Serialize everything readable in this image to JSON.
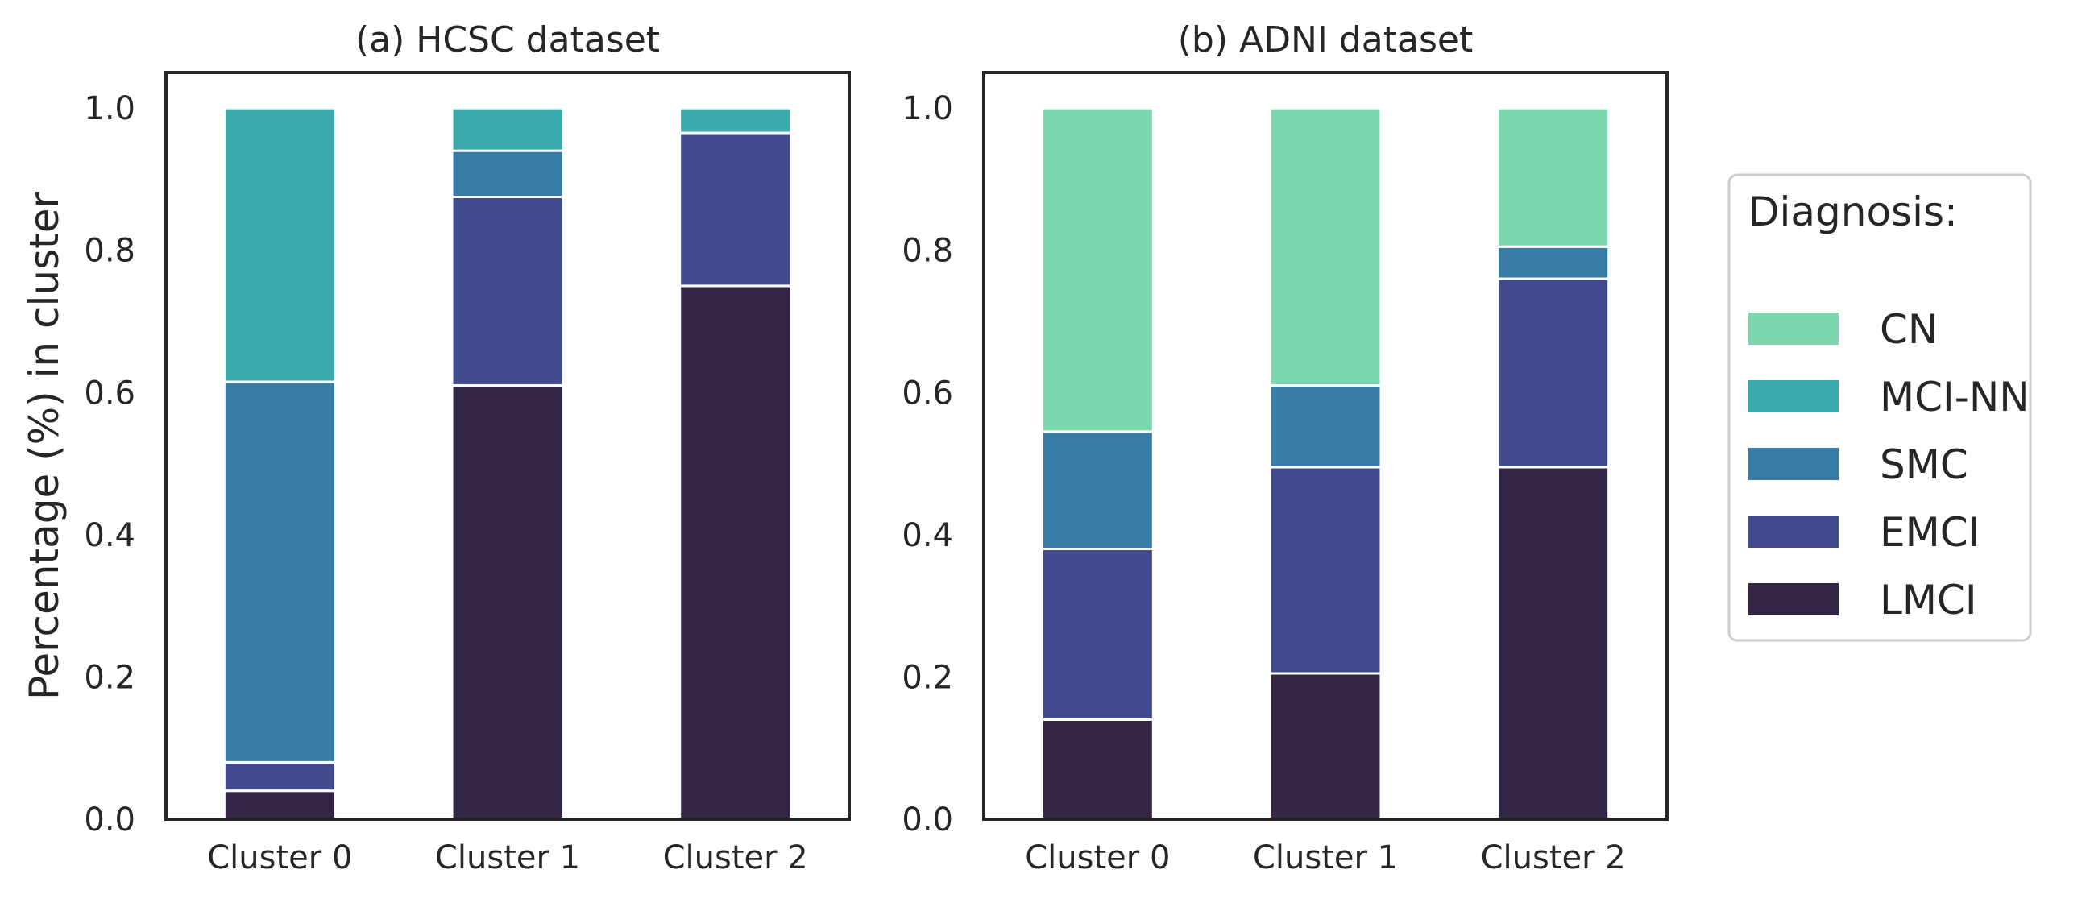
{
  "chart_data": [
    {
      "type": "bar",
      "stacked": true,
      "title": "(a) HCSC dataset",
      "ylabel": "Percentage (%) in cluster",
      "xlabel": "",
      "categories": [
        "Cluster 0",
        "Cluster 1",
        "Cluster 2"
      ],
      "ylim": [
        0,
        1.05
      ],
      "yticks": [
        "0.0",
        "0.2",
        "0.4",
        "0.6",
        "0.8",
        "1.0"
      ],
      "series": [
        {
          "name": "LMCI",
          "values": [
            0.04,
            0.61,
            0.75
          ]
        },
        {
          "name": "EMCI",
          "values": [
            0.04,
            0.265,
            0.215
          ]
        },
        {
          "name": "SMC",
          "values": [
            0.535,
            0.065,
            0.0
          ]
        },
        {
          "name": "MCI-NN",
          "values": [
            0.385,
            0.06,
            0.035
          ]
        },
        {
          "name": "CN",
          "values": [
            0.0,
            0.0,
            0.0
          ]
        }
      ],
      "grid": false
    },
    {
      "type": "bar",
      "stacked": true,
      "title": "(b) ADNI dataset",
      "ylabel": "",
      "xlabel": "",
      "categories": [
        "Cluster 0",
        "Cluster 1",
        "Cluster 2"
      ],
      "ylim": [
        0,
        1.05
      ],
      "yticks": [
        "0.0",
        "0.2",
        "0.4",
        "0.6",
        "0.8",
        "1.0"
      ],
      "series": [
        {
          "name": "LMCI",
          "values": [
            0.14,
            0.205,
            0.495
          ]
        },
        {
          "name": "EMCI",
          "values": [
            0.24,
            0.29,
            0.265
          ]
        },
        {
          "name": "SMC",
          "values": [
            0.165,
            0.115,
            0.045
          ]
        },
        {
          "name": "MCI-NN",
          "values": [
            0.0,
            0.0,
            0.0
          ]
        },
        {
          "name": "CN",
          "values": [
            0.455,
            0.39,
            0.195
          ]
        }
      ],
      "grid": false
    }
  ],
  "legend": {
    "title": "Diagnosis:",
    "placement": "right",
    "items": [
      {
        "label": "CN",
        "color": "#7cd6ae"
      },
      {
        "label": "MCI-NN",
        "color": "#3aa9ac"
      },
      {
        "label": "SMC",
        "color": "#377ca5"
      },
      {
        "label": "EMCI",
        "color": "#404a8c"
      },
      {
        "label": "LMCI",
        "color": "#332545"
      }
    ]
  },
  "colors": {
    "LMCI": "#332545",
    "EMCI": "#404a8c",
    "SMC": "#377ca5",
    "MCI-NN": "#3aa9ac",
    "CN": "#7cd6ae",
    "axis": "#262626"
  }
}
